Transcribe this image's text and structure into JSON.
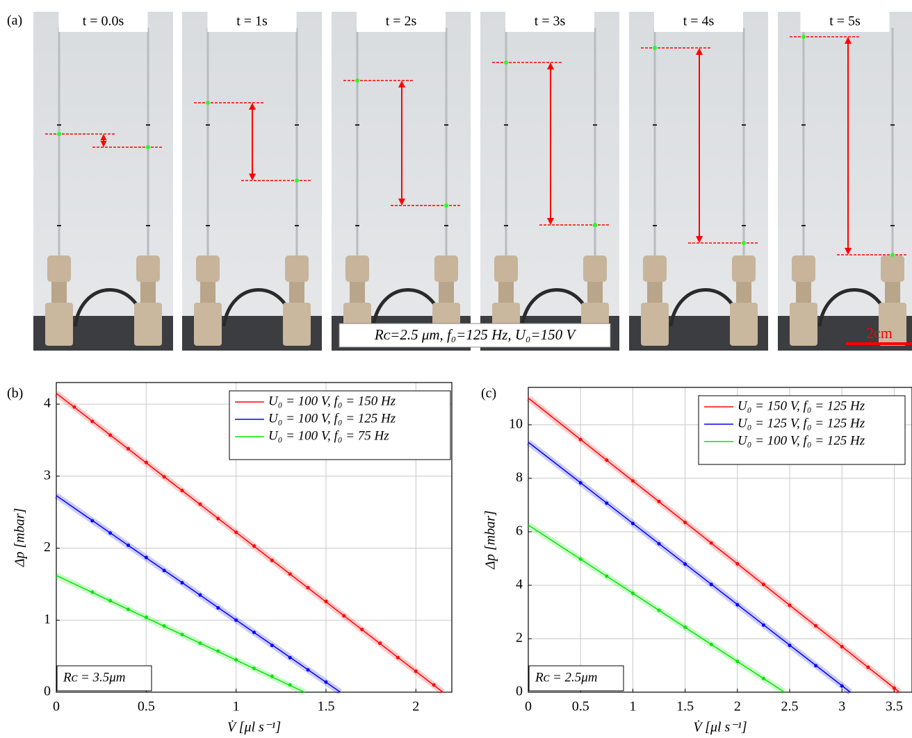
{
  "photo_panel": {
    "label": "(a)",
    "times": [
      "t = 0.0s",
      "t = 1s",
      "t = 2s",
      "t = 3s",
      "t = 4s",
      "t = 5s"
    ],
    "caption": "Rᴄ=2.5 μm, f₀=125 Hz, U₀=150 V",
    "scale_bar": "2cm"
  },
  "chart_data": [
    {
      "type": "scatter",
      "panel_label": "(b)",
      "x_label": "V̇ [μl s⁻¹]",
      "y_label": "Δp [mbar]",
      "annotation": "Rᴄ = 3.5μm",
      "xlim": [
        0,
        2.2
      ],
      "xticks": [
        0,
        0.5,
        1,
        1.5,
        2
      ],
      "ylim": [
        0,
        4.3
      ],
      "yticks": [
        0,
        1,
        2,
        3,
        4
      ],
      "grid": true,
      "legend": "upper right",
      "series": [
        {
          "name": "U₀ = 100 V, f₀ = 150 Hz",
          "color": "#ff0000",
          "x": [
            0.1,
            0.2,
            0.3,
            0.4,
            0.5,
            0.6,
            0.7,
            0.8,
            0.9,
            1.0,
            1.1,
            1.2,
            1.3,
            1.4,
            1.5,
            1.6,
            1.7,
            1.8,
            1.9,
            2.0,
            2.1
          ],
          "values": [
            3.96,
            3.76,
            3.57,
            3.38,
            3.19,
            2.99,
            2.8,
            2.61,
            2.41,
            2.22,
            2.03,
            1.83,
            1.64,
            1.45,
            1.26,
            1.06,
            0.87,
            0.68,
            0.48,
            0.29,
            0.1
          ],
          "fit": {
            "x": [
              0,
              2.15
            ],
            "values": [
              4.15,
              0
            ]
          }
        },
        {
          "name": "U₀ = 100 V, f₀ = 125 Hz",
          "color": "#0000ff",
          "x": [
            0.2,
            0.3,
            0.4,
            0.5,
            0.6,
            0.7,
            0.8,
            0.9,
            1.0,
            1.1,
            1.2,
            1.3,
            1.4,
            1.5
          ],
          "values": [
            2.38,
            2.21,
            2.04,
            1.87,
            1.69,
            1.52,
            1.35,
            1.17,
            1.0,
            0.83,
            0.65,
            0.48,
            0.31,
            0.14
          ],
          "fit": {
            "x": [
              0,
              1.58
            ],
            "values": [
              2.73,
              0
            ]
          }
        },
        {
          "name": "U₀ = 100 V, f₀ = 75 Hz",
          "color": "#00e600",
          "x": [
            0.2,
            0.3,
            0.4,
            0.5,
            0.6,
            0.7,
            0.8,
            0.9,
            1.0,
            1.1,
            1.2,
            1.3
          ],
          "values": [
            1.39,
            1.27,
            1.15,
            1.04,
            0.92,
            0.8,
            0.68,
            0.57,
            0.45,
            0.33,
            0.22,
            0.1
          ],
          "fit": {
            "x": [
              0,
              1.38
            ],
            "values": [
              1.62,
              0
            ]
          }
        }
      ]
    },
    {
      "type": "scatter",
      "panel_label": "(c)",
      "x_label": "V̇ [μl s⁻¹]",
      "y_label": "Δp [mbar]",
      "annotation": "Rᴄ = 2.5μm",
      "xlim": [
        0,
        3.67
      ],
      "xticks": [
        0,
        0.5,
        1,
        1.5,
        2,
        2.5,
        3,
        3.5
      ],
      "ylim": [
        0,
        11.4
      ],
      "yticks": [
        0,
        2,
        4,
        6,
        8,
        10
      ],
      "grid": true,
      "legend": "upper right",
      "series": [
        {
          "name": "U₀ = 150 V, f₀ = 125 Hz",
          "color": "#ff0000",
          "x": [
            0.5,
            0.75,
            1,
            1.25,
            1.5,
            1.75,
            2,
            2.25,
            2.5,
            2.75,
            3,
            3.25,
            3.5
          ],
          "values": [
            9.45,
            8.68,
            7.9,
            7.13,
            6.35,
            5.58,
            4.8,
            4.03,
            3.25,
            2.48,
            1.7,
            0.93,
            0.15
          ],
          "fit": {
            "x": [
              0,
              3.55
            ],
            "values": [
              11.0,
              0
            ]
          }
        },
        {
          "name": "U₀ = 125 V, f₀ = 125 Hz",
          "color": "#0000ff",
          "x": [
            0.5,
            0.75,
            1,
            1.25,
            1.5,
            1.75,
            2,
            2.25,
            2.5,
            2.75,
            3
          ],
          "values": [
            7.83,
            7.07,
            6.31,
            5.55,
            4.79,
            4.03,
            3.27,
            2.51,
            1.75,
            0.99,
            0.23
          ],
          "fit": {
            "x": [
              0,
              3.08
            ],
            "values": [
              9.35,
              0
            ]
          }
        },
        {
          "name": "U₀ = 100 V, f₀ = 125 Hz",
          "color": "#00e600",
          "x": [
            0.5,
            0.75,
            1,
            1.25,
            1.5,
            1.75,
            2,
            2.25
          ],
          "values": [
            4.98,
            4.34,
            3.7,
            3.06,
            2.43,
            1.79,
            1.15,
            0.51
          ],
          "fit": {
            "x": [
              0,
              2.45
            ],
            "values": [
              6.25,
              0
            ]
          }
        }
      ]
    }
  ]
}
